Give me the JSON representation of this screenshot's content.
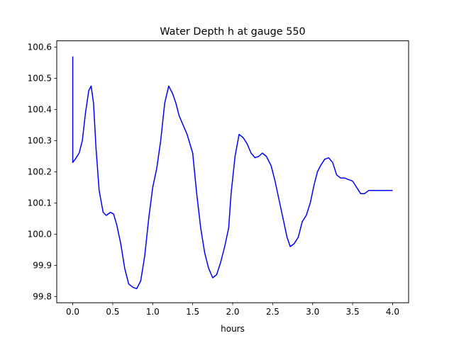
{
  "chart_data": {
    "type": "line",
    "title": "Water Depth h at gauge 550",
    "xlabel": "hours",
    "ylabel": "",
    "xlim": [
      -0.2,
      4.2
    ],
    "ylim": [
      99.78,
      100.62
    ],
    "xticks": [
      0.0,
      0.5,
      1.0,
      1.5,
      2.0,
      2.5,
      3.0,
      3.5,
      4.0
    ],
    "xtick_labels": [
      "0.0",
      "0.5",
      "1.0",
      "1.5",
      "2.0",
      "2.5",
      "3.0",
      "3.5",
      "4.0"
    ],
    "yticks": [
      99.8,
      99.9,
      100.0,
      100.1,
      100.2,
      100.3,
      100.4,
      100.5,
      100.6
    ],
    "ytick_labels": [
      "99.8",
      "99.9",
      "100.0",
      "100.1",
      "100.2",
      "100.3",
      "100.4",
      "100.5",
      "100.6"
    ],
    "grid": false,
    "series": [
      {
        "color": "#0000ff",
        "x": [
          0.0,
          0.0,
          0.0,
          0.03,
          0.08,
          0.12,
          0.16,
          0.2,
          0.23,
          0.26,
          0.29,
          0.33,
          0.38,
          0.42,
          0.47,
          0.51,
          0.55,
          0.6,
          0.65,
          0.7,
          0.75,
          0.8,
          0.85,
          0.9,
          0.95,
          1.0,
          1.05,
          1.1,
          1.15,
          1.2,
          1.25,
          1.29,
          1.33,
          1.38,
          1.43,
          1.5,
          1.55,
          1.6,
          1.65,
          1.7,
          1.75,
          1.8,
          1.85,
          1.9,
          1.95,
          1.98,
          2.03,
          2.08,
          2.13,
          2.18,
          2.23,
          2.28,
          2.33,
          2.37,
          2.42,
          2.48,
          2.53,
          2.58,
          2.63,
          2.68,
          2.72,
          2.77,
          2.82,
          2.87,
          2.92,
          2.97,
          3.02,
          3.06,
          3.1,
          3.15,
          3.2,
          3.25,
          3.3,
          3.35,
          3.4,
          3.45,
          3.5,
          3.55,
          3.6,
          3.65,
          3.7,
          3.74,
          3.79,
          3.84,
          3.88,
          3.93,
          3.96,
          4.0
        ],
        "y": [
          100.57,
          100.23,
          100.23,
          100.24,
          100.26,
          100.3,
          100.39,
          100.46,
          100.475,
          100.42,
          100.28,
          100.14,
          100.07,
          100.06,
          100.07,
          100.065,
          100.03,
          99.97,
          99.89,
          99.84,
          99.83,
          99.825,
          99.85,
          99.93,
          100.05,
          100.15,
          100.21,
          100.3,
          100.42,
          100.475,
          100.45,
          100.42,
          100.38,
          100.35,
          100.32,
          100.26,
          100.13,
          100.02,
          99.94,
          99.89,
          99.86,
          99.87,
          99.91,
          99.96,
          100.02,
          100.13,
          100.25,
          100.32,
          100.31,
          100.29,
          100.26,
          100.245,
          100.25,
          100.26,
          100.25,
          100.22,
          100.17,
          100.11,
          100.05,
          99.99,
          99.96,
          99.97,
          99.99,
          100.04,
          100.06,
          100.1,
          100.16,
          100.2,
          100.22,
          100.24,
          100.245,
          100.23,
          100.19,
          100.18,
          100.18,
          100.175,
          100.17,
          100.15,
          100.13,
          100.13,
          100.14,
          100.14,
          100.14,
          100.14,
          100.14,
          100.14,
          100.14,
          100.14
        ]
      }
    ]
  }
}
